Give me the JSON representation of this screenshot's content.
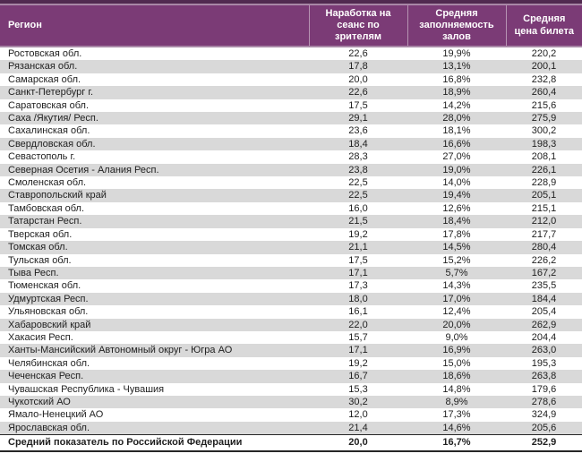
{
  "colors": {
    "top-bar": "#512a50",
    "accent-line": "#a887a6",
    "header-bg": "#7b3b76",
    "header-text": "#ffffff",
    "band": "#d9d9d9",
    "row-bg": "#ffffff",
    "text": "#1f1f1f",
    "total-border": "#262626"
  },
  "chart_data": {
    "type": "table",
    "columns": [
      "Регион",
      "Наработка на сеанс по зрителям",
      "Средняя заполняемость залов",
      "Средняя цена билета"
    ],
    "rows": [
      [
        "Ростовская обл.",
        "22,6",
        "19,9%",
        "220,2"
      ],
      [
        "Рязанская обл.",
        "17,8",
        "13,1%",
        "200,1"
      ],
      [
        "Самарская обл.",
        "20,0",
        "16,8%",
        "232,8"
      ],
      [
        "Санкт-Петербург г.",
        "22,6",
        "18,9%",
        "260,4"
      ],
      [
        "Саратовская обл.",
        "17,5",
        "14,2%",
        "215,6"
      ],
      [
        "Саха /Якутия/ Респ.",
        "29,1",
        "28,0%",
        "275,9"
      ],
      [
        "Сахалинская обл.",
        "23,6",
        "18,1%",
        "300,2"
      ],
      [
        "Свердловская обл.",
        "18,4",
        "16,6%",
        "198,3"
      ],
      [
        "Севастополь г.",
        "28,3",
        "27,0%",
        "208,1"
      ],
      [
        "Северная Осетия - Алания Респ.",
        "23,8",
        "19,0%",
        "226,1"
      ],
      [
        "Смоленская обл.",
        "22,5",
        "14,0%",
        "228,9"
      ],
      [
        "Ставропольский край",
        "22,5",
        "19,4%",
        "205,1"
      ],
      [
        "Тамбовская обл.",
        "16,0",
        "12,6%",
        "215,1"
      ],
      [
        "Татарстан Респ.",
        "21,5",
        "18,4%",
        "212,0"
      ],
      [
        "Тверская обл.",
        "19,2",
        "17,8%",
        "217,7"
      ],
      [
        "Томская обл.",
        "21,1",
        "14,5%",
        "280,4"
      ],
      [
        "Тульская обл.",
        "17,5",
        "15,2%",
        "226,2"
      ],
      [
        "Тыва Респ.",
        "17,1",
        "5,7%",
        "167,2"
      ],
      [
        "Тюменская обл.",
        "17,3",
        "14,3%",
        "235,5"
      ],
      [
        "Удмуртская Респ.",
        "18,0",
        "17,0%",
        "184,4"
      ],
      [
        "Ульяновская обл.",
        "16,1",
        "12,4%",
        "205,4"
      ],
      [
        "Хабаровский край",
        "22,0",
        "20,0%",
        "262,9"
      ],
      [
        "Хакасия Респ.",
        "15,7",
        "9,0%",
        "204,4"
      ],
      [
        "Ханты-Мансийский Автономный округ - Югра АО",
        "17,1",
        "16,9%",
        "263,0"
      ],
      [
        "Челябинская обл.",
        "19,2",
        "15,0%",
        "195,3"
      ],
      [
        "Чеченская Респ.",
        "16,7",
        "18,6%",
        "263,8"
      ],
      [
        "Чувашская Республика - Чувашия",
        "15,3",
        "14,8%",
        "179,6"
      ],
      [
        "Чукотский АО",
        "30,2",
        "8,9%",
        "278,6"
      ],
      [
        "Ямало-Ненецкий АО",
        "12,0",
        "17,3%",
        "324,9"
      ],
      [
        "Ярославская обл.",
        "21,4",
        "14,6%",
        "205,6"
      ]
    ],
    "total_row": [
      "Средний показатель по Российской Федерации",
      "20,0",
      "16,7%",
      "252,9"
    ]
  }
}
